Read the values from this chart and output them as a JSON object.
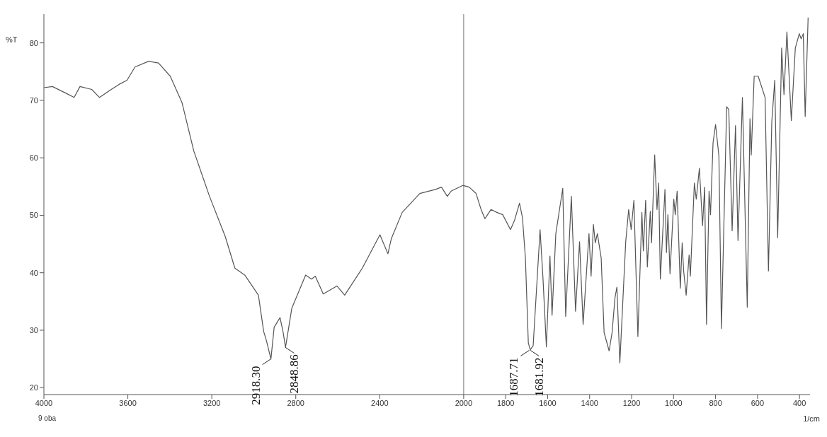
{
  "chart_data": {
    "type": "line",
    "xlabel": "1/cm",
    "ylabel": "%T",
    "xlim": [
      4000,
      350
    ],
    "ylim": [
      18.8,
      85
    ],
    "xticks": [
      4000,
      3600,
      3200,
      2800,
      2400,
      2000,
      1800,
      1600,
      1400,
      1200,
      1000,
      800,
      600,
      400
    ],
    "yticks": [
      20,
      30,
      40,
      50,
      60,
      70,
      80
    ],
    "grid": false,
    "legend": false,
    "marker": "none",
    "line_style": "solid",
    "ref_lines": [
      {
        "axis": "x",
        "value": 2000,
        "color": "#777777"
      }
    ],
    "annotations": [
      "9 oba",
      {
        "text": "2918.30",
        "x": 2918.3,
        "y": 25
      },
      {
        "text": "2848.86",
        "x": 2848.86,
        "y": 27
      },
      {
        "text": "1687.71",
        "x": 1687.71,
        "y": 26.5
      },
      {
        "text": "1681.92",
        "x": 1681.92,
        "y": 26.5
      }
    ],
    "series": [
      {
        "color": "#555555",
        "x": [
          4000,
          3959,
          3893,
          3856,
          3828,
          3772,
          3735,
          3679,
          3641,
          3604,
          3566,
          3501,
          3454,
          3398,
          3342,
          3286,
          3211,
          3136,
          3090,
          3043,
          2978,
          2953,
          2940,
          2918.3,
          2903,
          2875,
          2860,
          2848.86,
          2819,
          2753,
          2725,
          2707,
          2669,
          2604,
          2567,
          2483,
          2399,
          2361,
          2345,
          2293,
          2209,
          2134,
          2106,
          2078,
          2060,
          2004,
          1974,
          1941,
          1917,
          1899,
          1870,
          1842,
          1814,
          1777,
          1758,
          1734,
          1720,
          1706,
          1692,
          1683,
          1669,
          1636,
          1622,
          1606,
          1589,
          1579,
          1561,
          1528,
          1514,
          1487,
          1467,
          1448,
          1431,
          1403,
          1393,
          1382,
          1373,
          1363,
          1345,
          1331,
          1307,
          1293,
          1279,
          1270,
          1256,
          1228,
          1214,
          1202,
          1189,
          1170,
          1151,
          1144,
          1133,
          1125,
          1111,
          1105,
          1090,
          1079,
          1071,
          1063,
          1041,
          1034,
          1027,
          1017,
          999,
          992,
          983,
          968,
          959,
          952,
          940,
          926,
          920,
          901,
          892,
          877,
          862,
          852,
          843,
          831,
          824,
          812,
          800,
          784,
          772,
          747,
          737,
          721,
          705,
          693,
          672,
          649,
          636,
          630,
          616,
          597,
          564,
          548,
          532,
          518,
          504,
          485,
          474,
          460,
          439,
          420,
          401,
          392,
          382,
          373,
          359
        ],
        "values": [
          72.2,
          72.4,
          71.2,
          70.5,
          72.4,
          71.9,
          70.5,
          71.9,
          72.8,
          73.5,
          75.8,
          76.8,
          76.5,
          74.2,
          69.6,
          61.2,
          53.3,
          46.3,
          40.8,
          39.6,
          36.1,
          29.8,
          28.2,
          25,
          30.5,
          32.2,
          29.6,
          27,
          33.8,
          39.6,
          38.9,
          39.4,
          36.3,
          37.7,
          36.1,
          40.8,
          46.6,
          43.3,
          45.9,
          50.5,
          53.8,
          54.5,
          54.9,
          53.3,
          54.2,
          55.2,
          54.9,
          53.8,
          51,
          49.4,
          51,
          50.5,
          50.1,
          47.5,
          49.1,
          52.1,
          49.6,
          42.6,
          27.8,
          26.6,
          27.3,
          47.5,
          38.9,
          27.1,
          42.9,
          32.6,
          46.8,
          54.7,
          32.4,
          53.3,
          33.3,
          45.4,
          31,
          46.8,
          39.4,
          48.4,
          45.2,
          46.8,
          42.6,
          29.6,
          26.4,
          29.6,
          35.7,
          37.5,
          24.3,
          45.4,
          51,
          47.5,
          52.6,
          28.9,
          50.5,
          43.8,
          52.6,
          41,
          50.7,
          45.2,
          60.5,
          51,
          55.6,
          38.9,
          54.5,
          43.5,
          50.1,
          39.8,
          52.8,
          50.1,
          54.2,
          37.3,
          45.2,
          40.3,
          36.1,
          43.1,
          39.4,
          55.6,
          52.8,
          58.2,
          48.2,
          54.9,
          31,
          54.2,
          50.1,
          62.6,
          65.8,
          60.3,
          30.3,
          68.9,
          68.4,
          47.3,
          65.6,
          45.6,
          70.5,
          34,
          66.8,
          60.5,
          74.2,
          74.2,
          70.5,
          40.3,
          66.3,
          73.5,
          46.1,
          79.1,
          71,
          81.9,
          66.5,
          79.1,
          81.6,
          80.7,
          81.6,
          67.2,
          84.4
        ]
      }
    ]
  }
}
